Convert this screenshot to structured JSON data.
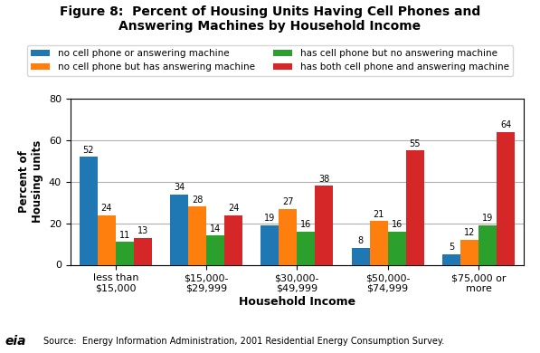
{
  "chart_data": {
    "type": "bar",
    "title": "Figure 8:  Percent of Housing Units Having Cell Phones and\nAnswering Machines by Household Income",
    "x_label": "Household Income",
    "y_label": "Percent of\nHousing units",
    "categories": [
      "less than\n$15,000",
      "$15,000-\n$29,999",
      "$30,000-\n$49,999",
      "$50,000-\n$74,999",
      "$75,000 or\nmore"
    ],
    "series": [
      {
        "name": "no cell phone or answering machine",
        "values": [
          52,
          34,
          19,
          8,
          5
        ]
      },
      {
        "name": "no cell phone but has answering machine",
        "values": [
          24,
          28,
          27,
          21,
          12
        ]
      },
      {
        "name": "has cell phone but no answering machine",
        "values": [
          11,
          14,
          16,
          16,
          19
        ]
      },
      {
        "name": "has both cell phone and answering machine",
        "values": [
          13,
          24,
          38,
          55,
          64
        ]
      }
    ],
    "ylim": [
      0,
      80
    ],
    "yticks": [
      0,
      20,
      40,
      60,
      80
    ],
    "grid": true,
    "legend": "upper center",
    "data_labels": true,
    "annotations": [
      "eia",
      "Source:  Energy Information Administration, 2001 Residential Energy Consumption Survey."
    ]
  }
}
